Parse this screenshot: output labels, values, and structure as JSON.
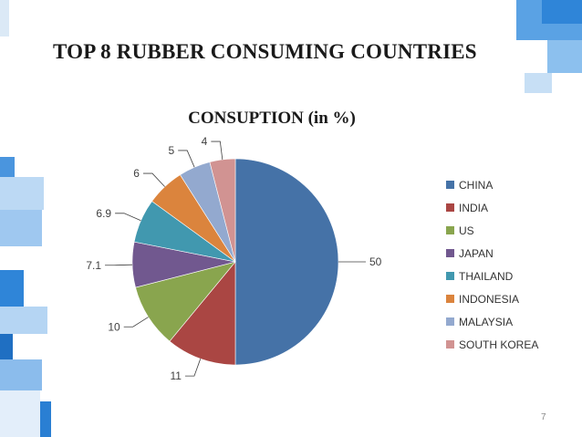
{
  "slide": {
    "title": "TOP 8 RUBBER CONSUMING  COUNTRIES",
    "page_number": "7"
  },
  "chart_data": {
    "type": "pie",
    "title": "CONSUPTION (in  %)",
    "categories": [
      "CHINA",
      "INDIA",
      "US",
      "JAPAN",
      "THAILAND",
      "INDONESIA",
      "MALAYSIA",
      "SOUTH KOREA"
    ],
    "values": [
      50,
      11,
      10,
      7.1,
      6.9,
      6,
      5,
      4
    ],
    "data_labels": [
      "50",
      "11",
      "10",
      "7.1",
      "6.9",
      "6",
      "5",
      "4"
    ],
    "colors": [
      "#4572A7",
      "#AA4643",
      "#89A54E",
      "#71588F",
      "#4198AF",
      "#DB843D",
      "#93A9CF",
      "#D19392"
    ],
    "start_angle_deg": 0,
    "direction": "clockwise",
    "legend": "right"
  }
}
